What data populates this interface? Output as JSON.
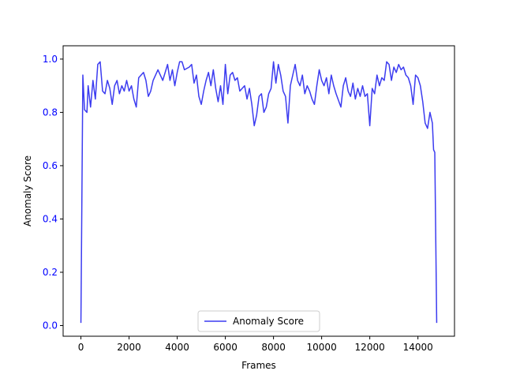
{
  "chart_data": {
    "type": "line",
    "xlabel": "Frames",
    "ylabel": "Anomaly Score",
    "x": [
      0,
      80,
      150,
      250,
      300,
      400,
      500,
      600,
      700,
      800,
      900,
      1000,
      1100,
      1200,
      1300,
      1400,
      1500,
      1600,
      1700,
      1800,
      1900,
      2000,
      2100,
      2200,
      2300,
      2400,
      2500,
      2600,
      2700,
      2800,
      2900,
      3000,
      3200,
      3400,
      3600,
      3700,
      3800,
      3900,
      4000,
      4100,
      4200,
      4300,
      4500,
      4600,
      4700,
      4800,
      4900,
      5000,
      5100,
      5200,
      5300,
      5400,
      5500,
      5600,
      5700,
      5800,
      5900,
      6000,
      6100,
      6200,
      6300,
      6400,
      6500,
      6600,
      6800,
      6900,
      7000,
      7100,
      7200,
      7300,
      7400,
      7500,
      7600,
      7700,
      7800,
      7900,
      8000,
      8100,
      8200,
      8300,
      8400,
      8500,
      8600,
      8700,
      8800,
      8900,
      9000,
      9100,
      9200,
      9300,
      9400,
      9500,
      9600,
      9700,
      9800,
      9900,
      10000,
      10100,
      10200,
      10300,
      10400,
      10500,
      10600,
      10800,
      10900,
      11000,
      11100,
      11200,
      11300,
      11400,
      11500,
      11600,
      11700,
      11800,
      11900,
      12000,
      12100,
      12200,
      12300,
      12400,
      12500,
      12600,
      12700,
      12800,
      12900,
      13000,
      13100,
      13200,
      13300,
      13400,
      13500,
      13600,
      13700,
      13800,
      13900,
      14000,
      14100,
      14200,
      14300,
      14400,
      14500,
      14600,
      14650,
      14700,
      14780
    ],
    "series": [
      {
        "name": "Anomaly Score",
        "color": "#3c3cf0",
        "values": [
          0.01,
          0.94,
          0.81,
          0.8,
          0.9,
          0.82,
          0.92,
          0.85,
          0.98,
          0.99,
          0.88,
          0.87,
          0.92,
          0.89,
          0.83,
          0.9,
          0.92,
          0.87,
          0.9,
          0.88,
          0.92,
          0.88,
          0.9,
          0.85,
          0.82,
          0.93,
          0.94,
          0.95,
          0.92,
          0.86,
          0.88,
          0.92,
          0.96,
          0.92,
          0.98,
          0.92,
          0.96,
          0.9,
          0.95,
          0.99,
          0.99,
          0.96,
          0.97,
          0.98,
          0.91,
          0.94,
          0.86,
          0.83,
          0.88,
          0.92,
          0.95,
          0.9,
          0.96,
          0.89,
          0.84,
          0.9,
          0.83,
          0.98,
          0.87,
          0.94,
          0.95,
          0.92,
          0.93,
          0.88,
          0.9,
          0.85,
          0.89,
          0.83,
          0.75,
          0.79,
          0.86,
          0.87,
          0.8,
          0.82,
          0.87,
          0.89,
          0.99,
          0.91,
          0.98,
          0.94,
          0.88,
          0.86,
          0.76,
          0.9,
          0.94,
          0.98,
          0.92,
          0.9,
          0.94,
          0.87,
          0.9,
          0.88,
          0.85,
          0.83,
          0.9,
          0.96,
          0.92,
          0.9,
          0.93,
          0.87,
          0.94,
          0.9,
          0.87,
          0.82,
          0.9,
          0.93,
          0.88,
          0.86,
          0.91,
          0.85,
          0.89,
          0.86,
          0.9,
          0.86,
          0.87,
          0.75,
          0.89,
          0.87,
          0.94,
          0.9,
          0.93,
          0.92,
          0.99,
          0.98,
          0.92,
          0.97,
          0.95,
          0.98,
          0.96,
          0.97,
          0.94,
          0.93,
          0.9,
          0.83,
          0.94,
          0.93,
          0.9,
          0.84,
          0.76,
          0.74,
          0.8,
          0.76,
          0.66,
          0.65,
          0.01
        ]
      }
    ],
    "xlim": [
      -739,
      15519
    ],
    "xticks": [
      0,
      2000,
      4000,
      6000,
      8000,
      10000,
      12000,
      14000
    ],
    "ylim": [
      -0.04,
      1.05
    ],
    "yticks": [
      {
        "value": 0,
        "label": "0.0"
      },
      0.2,
      0.4,
      0.6,
      0.8,
      {
        "value": 1,
        "label": "1.0"
      }
    ],
    "ytick_color": "#0000ff",
    "legend": "lower center",
    "grid": false
  }
}
